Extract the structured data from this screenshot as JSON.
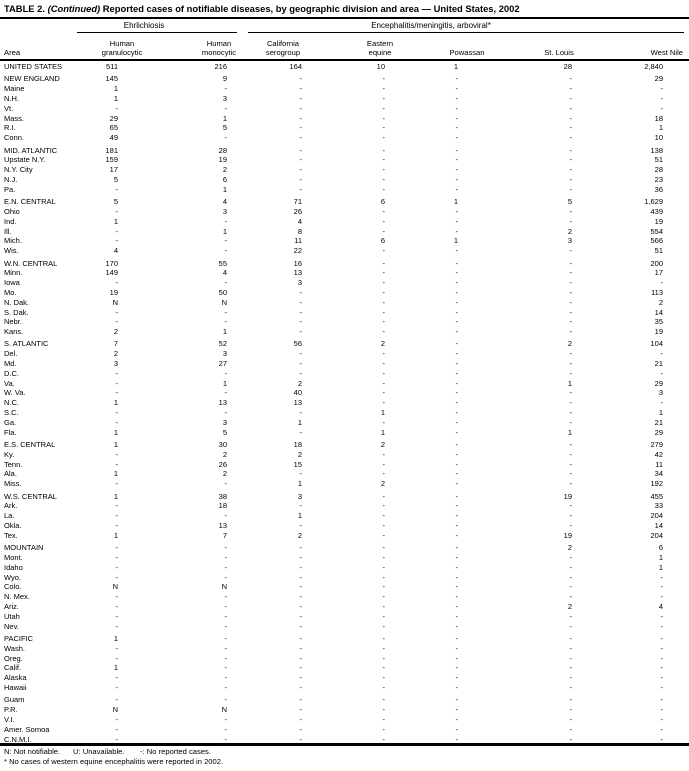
{
  "title": {
    "table_label": "TABLE 2. ",
    "continued": "(Continued)",
    "rest": " Reported cases of notifiable diseases, by geographic division and area — United States, 2002"
  },
  "header": {
    "area_label": "Area",
    "groups": [
      {
        "label": "Ehrlichiosis"
      },
      {
        "label": "Encephalitis/meningitis, arboviral*"
      }
    ],
    "columns": [
      {
        "l1": "Human",
        "l2": "granulocytic"
      },
      {
        "l1": "Human",
        "l2": "monocytic"
      },
      {
        "l1": "California",
        "l2": "serogroup"
      },
      {
        "l1": "Eastern",
        "l2": "equine"
      },
      {
        "l1": "",
        "l2": "Powassan"
      },
      {
        "l1": "",
        "l2": "St. Louis"
      },
      {
        "l1": "",
        "l2": "West Nile"
      }
    ]
  },
  "sections": [
    {
      "rows": [
        {
          "area": "UNITED STATES",
          "values": [
            "511",
            "216",
            "164",
            "10",
            "1",
            "28",
            "2,840"
          ]
        }
      ]
    },
    {
      "rows": [
        {
          "area": "NEW ENGLAND",
          "values": [
            "145",
            "9",
            "-",
            "-",
            "-",
            "-",
            "29"
          ]
        },
        {
          "area": "Maine",
          "values": [
            "1",
            "-",
            "-",
            "-",
            "-",
            "-",
            "-"
          ]
        },
        {
          "area": "N.H.",
          "values": [
            "1",
            "3",
            "-",
            "-",
            "-",
            "-",
            "-"
          ]
        },
        {
          "area": "Vt.",
          "values": [
            "-",
            "-",
            "-",
            "-",
            "-",
            "-",
            "-"
          ]
        },
        {
          "area": "Mass.",
          "values": [
            "29",
            "1",
            "-",
            "-",
            "-",
            "-",
            "18"
          ]
        },
        {
          "area": "R.I.",
          "values": [
            "65",
            "5",
            "-",
            "-",
            "-",
            "-",
            "1"
          ]
        },
        {
          "area": "Conn.",
          "values": [
            "49",
            "-",
            "-",
            "-",
            "-",
            "-",
            "10"
          ]
        }
      ]
    },
    {
      "rows": [
        {
          "area": "MID. ATLANTIC",
          "values": [
            "181",
            "28",
            "-",
            "-",
            "-",
            "-",
            "138"
          ]
        },
        {
          "area": "Upstate N.Y.",
          "values": [
            "159",
            "19",
            "-",
            "-",
            "-",
            "-",
            "51"
          ]
        },
        {
          "area": "N.Y. City",
          "values": [
            "17",
            "2",
            "-",
            "-",
            "-",
            "-",
            "28"
          ]
        },
        {
          "area": "N.J.",
          "values": [
            "5",
            "6",
            "-",
            "-",
            "-",
            "-",
            "23"
          ]
        },
        {
          "area": "Pa.",
          "values": [
            "-",
            "1",
            "-",
            "-",
            "-",
            "-",
            "36"
          ]
        }
      ]
    },
    {
      "rows": [
        {
          "area": "E.N. CENTRAL",
          "values": [
            "5",
            "4",
            "71",
            "6",
            "1",
            "5",
            "1,629"
          ]
        },
        {
          "area": "Ohio",
          "values": [
            "-",
            "3",
            "26",
            "-",
            "-",
            "-",
            "439"
          ]
        },
        {
          "area": "Ind.",
          "values": [
            "1",
            "-",
            "4",
            "-",
            "-",
            "-",
            "19"
          ]
        },
        {
          "area": "Ill.",
          "values": [
            "-",
            "1",
            "8",
            "-",
            "-",
            "2",
            "554"
          ]
        },
        {
          "area": "Mich.",
          "values": [
            "-",
            "-",
            "11",
            "6",
            "1",
            "3",
            "566"
          ]
        },
        {
          "area": "Wis.",
          "values": [
            "4",
            "-",
            "22",
            "-",
            "-",
            "-",
            "51"
          ]
        }
      ]
    },
    {
      "rows": [
        {
          "area": "W.N. CENTRAL",
          "values": [
            "170",
            "55",
            "16",
            "-",
            "-",
            "-",
            "200"
          ]
        },
        {
          "area": "Minn.",
          "values": [
            "149",
            "4",
            "13",
            "-",
            "-",
            "-",
            "17"
          ]
        },
        {
          "area": "Iowa",
          "values": [
            "-",
            "-",
            "3",
            "-",
            "-",
            "-",
            "-"
          ]
        },
        {
          "area": "Mo.",
          "values": [
            "19",
            "50",
            "-",
            "-",
            "-",
            "-",
            "113"
          ]
        },
        {
          "area": "N. Dak.",
          "values": [
            "N",
            "N",
            "-",
            "-",
            "-",
            "-",
            "2"
          ]
        },
        {
          "area": "S. Dak.",
          "values": [
            "-",
            "-",
            "-",
            "-",
            "-",
            "-",
            "14"
          ]
        },
        {
          "area": "Nebr.",
          "values": [
            "-",
            "-",
            "-",
            "-",
            "-",
            "-",
            "35"
          ]
        },
        {
          "area": "Kans.",
          "values": [
            "2",
            "1",
            "-",
            "-",
            "-",
            "-",
            "19"
          ]
        }
      ]
    },
    {
      "rows": [
        {
          "area": "S. ATLANTIC",
          "values": [
            "7",
            "52",
            "56",
            "2",
            "-",
            "2",
            "104"
          ]
        },
        {
          "area": "Del.",
          "values": [
            "2",
            "3",
            "-",
            "-",
            "-",
            "-",
            "-"
          ]
        },
        {
          "area": "Md.",
          "values": [
            "3",
            "27",
            "-",
            "-",
            "-",
            "-",
            "21"
          ]
        },
        {
          "area": "D.C.",
          "values": [
            "-",
            "-",
            "-",
            "-",
            "-",
            "-",
            "-"
          ]
        },
        {
          "area": "Va.",
          "values": [
            "-",
            "1",
            "2",
            "-",
            "-",
            "1",
            "29"
          ]
        },
        {
          "area": "W. Va.",
          "values": [
            "-",
            "-",
            "40",
            "-",
            "-",
            "-",
            "3"
          ]
        },
        {
          "area": "N.C.",
          "values": [
            "1",
            "13",
            "13",
            "-",
            "-",
            "-",
            "-"
          ]
        },
        {
          "area": "S.C.",
          "values": [
            "-",
            "-",
            "-",
            "1",
            "-",
            "-",
            "1"
          ]
        },
        {
          "area": "Ga.",
          "values": [
            "-",
            "3",
            "1",
            "-",
            "-",
            "-",
            "21"
          ]
        },
        {
          "area": "Fla.",
          "values": [
            "1",
            "5",
            "-",
            "1",
            "-",
            "1",
            "29"
          ]
        }
      ]
    },
    {
      "rows": [
        {
          "area": "E.S. CENTRAL",
          "values": [
            "1",
            "30",
            "18",
            "2",
            "-",
            "-",
            "279"
          ]
        },
        {
          "area": "Ky.",
          "values": [
            "-",
            "2",
            "2",
            "-",
            "-",
            "-",
            "42"
          ]
        },
        {
          "area": "Tenn.",
          "values": [
            "-",
            "26",
            "15",
            "-",
            "-",
            "-",
            "11"
          ]
        },
        {
          "area": "Ala.",
          "values": [
            "1",
            "2",
            "-",
            "-",
            "-",
            "-",
            "34"
          ]
        },
        {
          "area": "Miss.",
          "values": [
            "-",
            "-",
            "1",
            "2",
            "-",
            "-",
            "192"
          ]
        }
      ]
    },
    {
      "rows": [
        {
          "area": "W.S. CENTRAL",
          "values": [
            "1",
            "38",
            "3",
            "-",
            "-",
            "19",
            "455"
          ]
        },
        {
          "area": "Ark.",
          "values": [
            "-",
            "18",
            "-",
            "-",
            "-",
            "-",
            "33"
          ]
        },
        {
          "area": "La.",
          "values": [
            "-",
            "-",
            "1",
            "-",
            "-",
            "-",
            "204"
          ]
        },
        {
          "area": "Okla.",
          "values": [
            "-",
            "13",
            "-",
            "-",
            "-",
            "-",
            "14"
          ]
        },
        {
          "area": "Tex.",
          "values": [
            "1",
            "7",
            "2",
            "-",
            "-",
            "19",
            "204"
          ]
        }
      ]
    },
    {
      "rows": [
        {
          "area": "MOUNTAIN",
          "values": [
            "-",
            "-",
            "-",
            "-",
            "-",
            "2",
            "6"
          ]
        },
        {
          "area": "Mont.",
          "values": [
            "-",
            "-",
            "-",
            "-",
            "-",
            "-",
            "1"
          ]
        },
        {
          "area": "Idaho",
          "values": [
            "-",
            "-",
            "-",
            "-",
            "-",
            "-",
            "1"
          ]
        },
        {
          "area": "Wyo.",
          "values": [
            "-",
            "-",
            "-",
            "-",
            "-",
            "-",
            "-"
          ]
        },
        {
          "area": "Colo.",
          "values": [
            "N",
            "N",
            "-",
            "-",
            "-",
            "-",
            "-"
          ]
        },
        {
          "area": "N. Mex.",
          "values": [
            "-",
            "-",
            "-",
            "-",
            "-",
            "-",
            "-"
          ]
        },
        {
          "area": "Ariz.",
          "values": [
            "-",
            "-",
            "-",
            "-",
            "-",
            "2",
            "4"
          ]
        },
        {
          "area": "Utah",
          "values": [
            "-",
            "-",
            "-",
            "-",
            "-",
            "-",
            "-"
          ]
        },
        {
          "area": "Nev.",
          "values": [
            "-",
            "-",
            "-",
            "-",
            "-",
            "-",
            "-"
          ]
        }
      ]
    },
    {
      "rows": [
        {
          "area": "PACIFIC",
          "values": [
            "1",
            "-",
            "-",
            "-",
            "-",
            "-",
            "-"
          ]
        },
        {
          "area": "Wash.",
          "values": [
            "-",
            "-",
            "-",
            "-",
            "-",
            "-",
            "-"
          ]
        },
        {
          "area": "Oreg.",
          "values": [
            "-",
            "-",
            "-",
            "-",
            "-",
            "-",
            "-"
          ]
        },
        {
          "area": "Calif.",
          "values": [
            "1",
            "-",
            "-",
            "-",
            "-",
            "-",
            "-"
          ]
        },
        {
          "area": "Alaska",
          "values": [
            "-",
            "-",
            "-",
            "-",
            "-",
            "-",
            "-"
          ]
        },
        {
          "area": "Hawaii",
          "values": [
            "-",
            "-",
            "-",
            "-",
            "-",
            "-",
            "-"
          ]
        }
      ]
    },
    {
      "rows": [
        {
          "area": "Guam",
          "values": [
            "-",
            "-",
            "-",
            "-",
            "-",
            "-",
            "-"
          ]
        },
        {
          "area": "P.R.",
          "values": [
            "N",
            "N",
            "-",
            "-",
            "-",
            "-",
            "-"
          ]
        },
        {
          "area": "V.I.",
          "values": [
            "-",
            "-",
            "-",
            "-",
            "-",
            "-",
            "-"
          ]
        },
        {
          "area": "Amer. Somoa",
          "values": [
            "-",
            "-",
            "-",
            "-",
            "-",
            "-",
            "-"
          ]
        },
        {
          "area": "C.N.M.I.",
          "values": [
            "-",
            "-",
            "-",
            "-",
            "-",
            "-",
            "-"
          ]
        }
      ]
    }
  ],
  "footnotes": {
    "n": "N: Not notifiable.",
    "u": "U: Unavailable.",
    "dash": "-: No reported cases.",
    "star": "* No cases of western equine encephalitis were reported in 2002."
  }
}
